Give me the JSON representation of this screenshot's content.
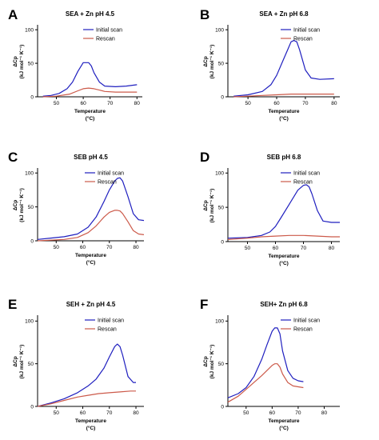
{
  "colors": {
    "initial": "#1f1fbf",
    "rescan": "#cc5a4a",
    "axis": "#000000"
  },
  "chart_data": [
    {
      "type": "line",
      "letter": "A",
      "title": "SEA + Zn pH 4.5",
      "xlabel_line1": "Temperature",
      "xlabel_line2": "(°C)",
      "ylabel_line1": "ΔCp",
      "ylabel_line2": "(kJ mol⁻¹ K⁻¹)",
      "xlim": [
        43,
        82
      ],
      "ylim": [
        0,
        105
      ],
      "xticks": [
        50,
        60,
        70,
        80
      ],
      "yticks": [
        0,
        50,
        100
      ],
      "legend_position": "top-right",
      "series": [
        {
          "name": "Initial scan",
          "color_key": "initial",
          "x": [
            45,
            48,
            51,
            54,
            56,
            58,
            60,
            62,
            63,
            64,
            66,
            68,
            72,
            76,
            80
          ],
          "y": [
            1,
            2,
            5,
            12,
            22,
            38,
            51,
            51,
            46,
            36,
            22,
            16,
            15,
            16,
            18
          ]
        },
        {
          "name": "Rescan",
          "color_key": "rescan",
          "x": [
            45,
            50,
            55,
            58,
            60,
            62,
            64,
            66,
            68,
            72,
            76,
            80
          ],
          "y": [
            0,
            1,
            4,
            9,
            12,
            13,
            12,
            10,
            8,
            7,
            7,
            7
          ]
        }
      ]
    },
    {
      "type": "line",
      "letter": "B",
      "title": "SEA + Zn pH 6.8",
      "xlabel_line1": "Temperature",
      "xlabel_line2": "(°C)",
      "ylabel_line1": "ΔCp",
      "ylabel_line2": "(kJ mol⁻¹ K⁻¹)",
      "xlim": [
        43,
        82
      ],
      "ylim": [
        0,
        105
      ],
      "xticks": [
        50,
        60,
        70,
        80
      ],
      "yticks": [
        0,
        50,
        100
      ],
      "legend_position": "top-right",
      "series": [
        {
          "name": "Initial scan",
          "color_key": "initial",
          "x": [
            45,
            50,
            55,
            58,
            60,
            62,
            64,
            65,
            66,
            67,
            68,
            70,
            72,
            75,
            80
          ],
          "y": [
            1,
            3,
            8,
            18,
            32,
            52,
            72,
            82,
            84,
            82,
            70,
            40,
            28,
            26,
            27
          ]
        },
        {
          "name": "Rescan",
          "color_key": "rescan",
          "x": [
            45,
            50,
            55,
            60,
            65,
            68,
            72,
            76,
            80
          ],
          "y": [
            0,
            1,
            2,
            3,
            4,
            4,
            4,
            4,
            4
          ]
        }
      ]
    },
    {
      "type": "line",
      "letter": "C",
      "title": "SEB pH 4.5",
      "xlabel_line1": "Temperature",
      "xlabel_line2": "(°C)",
      "ylabel_line1": "ΔCp",
      "ylabel_line2": "(kJ mol⁻¹ K⁻¹)",
      "xlim": [
        43,
        83
      ],
      "ylim": [
        0,
        105
      ],
      "xticks": [
        50,
        60,
        70,
        80
      ],
      "yticks": [
        0,
        50,
        100
      ],
      "legend_position": "top-right",
      "series": [
        {
          "name": "Initial scan",
          "color_key": "initial",
          "x": [
            43,
            48,
            53,
            58,
            62,
            65,
            68,
            70,
            72,
            73,
            74,
            75,
            77,
            79,
            81,
            83
          ],
          "y": [
            2,
            4,
            6,
            10,
            20,
            35,
            58,
            75,
            88,
            92,
            93,
            88,
            65,
            40,
            31,
            30
          ]
        },
        {
          "name": "Rescan",
          "color_key": "rescan",
          "x": [
            43,
            48,
            53,
            58,
            62,
            65,
            68,
            70,
            72,
            73,
            74,
            75,
            77,
            79,
            81,
            83
          ],
          "y": [
            0,
            1,
            2,
            5,
            12,
            22,
            35,
            42,
            45,
            45,
            44,
            40,
            28,
            15,
            10,
            9
          ]
        }
      ]
    },
    {
      "type": "line",
      "letter": "D",
      "title": "SEB pH 6.8",
      "xlabel_line1": "Temperature",
      "xlabel_line2": "(°C)",
      "ylabel_line1": "ΔCp",
      "ylabel_line2": "(kJ mol⁻¹ K⁻¹)",
      "xlim": [
        43,
        83
      ],
      "ylim": [
        0,
        105
      ],
      "xticks": [
        50,
        60,
        70,
        80
      ],
      "yticks": [
        0,
        50,
        100
      ],
      "legend_position": "top-right",
      "series": [
        {
          "name": "Initial scan",
          "color_key": "initial",
          "x": [
            43,
            50,
            55,
            58,
            60,
            62,
            65,
            68,
            70,
            71,
            72,
            73,
            75,
            77,
            80,
            83
          ],
          "y": [
            5,
            6,
            9,
            14,
            22,
            35,
            55,
            75,
            82,
            83,
            80,
            70,
            45,
            30,
            28,
            28
          ]
        },
        {
          "name": "Rescan",
          "color_key": "rescan",
          "x": [
            43,
            50,
            55,
            60,
            65,
            70,
            75,
            80,
            83
          ],
          "y": [
            3,
            5,
            7,
            8,
            9,
            9,
            8,
            7,
            7
          ]
        }
      ]
    },
    {
      "type": "line",
      "letter": "E",
      "title": "SEH + Zn pH 4.5",
      "xlabel_line1": "Temperature",
      "xlabel_line2": "(°C)",
      "ylabel_line1": "ΔCp",
      "ylabel_line2": "(kJ mol⁻¹ K⁻¹)",
      "xlim": [
        43,
        83
      ],
      "ylim": [
        0,
        105
      ],
      "xticks": [
        50,
        60,
        70,
        80
      ],
      "yticks": [
        0,
        50,
        100
      ],
      "legend_position": "top-right",
      "series": [
        {
          "name": "Initial scan",
          "color_key": "initial",
          "x": [
            43,
            48,
            53,
            58,
            62,
            65,
            68,
            70,
            72,
            73,
            74,
            75,
            77,
            79,
            80
          ],
          "y": [
            0,
            4,
            9,
            16,
            24,
            32,
            45,
            58,
            70,
            73,
            70,
            60,
            35,
            28,
            28
          ]
        },
        {
          "name": "Rescan",
          "color_key": "rescan",
          "x": [
            43,
            48,
            53,
            58,
            62,
            66,
            70,
            74,
            78,
            80
          ],
          "y": [
            0,
            3,
            7,
            11,
            13,
            15,
            16,
            17,
            18,
            18
          ]
        }
      ]
    },
    {
      "type": "line",
      "letter": "F",
      "title": "SEH+ Zn pH 6.8",
      "xlabel_line1": "Temperature",
      "xlabel_line2": "(°C)",
      "ylabel_line1": "ΔCp",
      "ylabel_line2": "(kJ mol⁻¹ K⁻¹)",
      "xlim": [
        43,
        86
      ],
      "ylim": [
        0,
        105
      ],
      "xticks": [
        50,
        60,
        70,
        80
      ],
      "yticks": [
        0,
        50,
        100
      ],
      "legend_position": "top-right",
      "series": [
        {
          "name": "Initial scan",
          "color_key": "initial",
          "x": [
            43,
            47,
            50,
            53,
            56,
            58,
            60,
            61,
            62,
            63,
            64,
            66,
            68,
            70,
            72
          ],
          "y": [
            10,
            15,
            22,
            35,
            55,
            72,
            88,
            92,
            92,
            85,
            65,
            42,
            33,
            30,
            29
          ]
        },
        {
          "name": "Rescan",
          "color_key": "rescan",
          "x": [
            43,
            47,
            50,
            53,
            56,
            58,
            60,
            61,
            62,
            63,
            64,
            66,
            68,
            70,
            72
          ],
          "y": [
            5,
            12,
            20,
            28,
            36,
            42,
            48,
            50,
            50,
            46,
            38,
            28,
            24,
            23,
            22
          ]
        }
      ]
    }
  ]
}
